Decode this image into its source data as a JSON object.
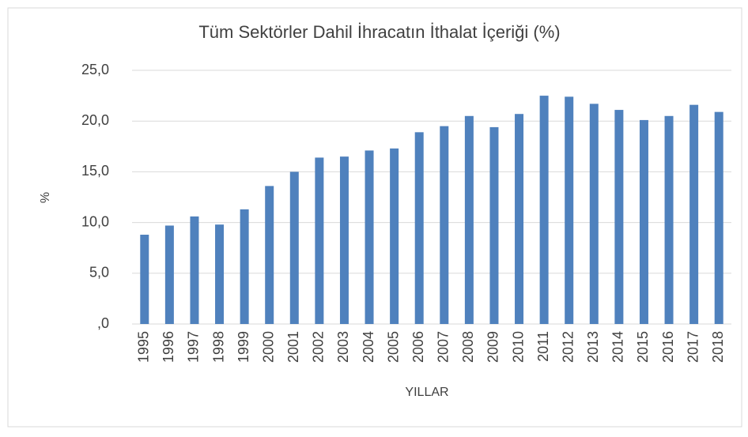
{
  "chart_data": {
    "type": "bar",
    "title": "Tüm Sektörler Dahil İhracatın İthalat İçeriği (%)",
    "xlabel": "YILLAR",
    "ylabel": "%",
    "categories": [
      "1995",
      "1996",
      "1997",
      "1998",
      "1999",
      "2000",
      "2001",
      "2002",
      "2003",
      "2004",
      "2005",
      "2006",
      "2007",
      "2008",
      "2009",
      "2010",
      "2011",
      "2012",
      "2013",
      "2014",
      "2015",
      "2016",
      "2017",
      "2018"
    ],
    "values": [
      8.8,
      9.7,
      10.6,
      9.8,
      11.3,
      13.6,
      15.0,
      16.4,
      16.5,
      17.1,
      17.3,
      18.9,
      19.5,
      20.5,
      19.4,
      20.7,
      22.5,
      22.4,
      21.7,
      21.1,
      20.1,
      20.5,
      21.6,
      20.9
    ],
    "color": "#4f81bd",
    "ylim": [
      0,
      25
    ],
    "yticks": [
      {
        "value": 0,
        "label": ",0"
      },
      {
        "value": 5,
        "label": "5,0"
      },
      {
        "value": 10,
        "label": "10,0"
      },
      {
        "value": 15,
        "label": "15,0"
      },
      {
        "value": 20,
        "label": "20,0"
      },
      {
        "value": 25,
        "label": "25,0"
      }
    ],
    "grid": true
  }
}
